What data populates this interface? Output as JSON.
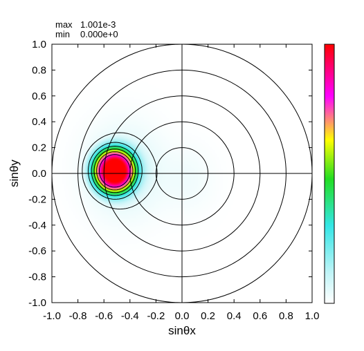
{
  "stats": {
    "max_label": "max",
    "max_value": "1.001e-3",
    "min_label": "min",
    "min_value": "0.000e+0"
  },
  "chart_data": {
    "type": "heatmap",
    "title": "",
    "xlabel": "sinθx",
    "ylabel": "sinθy",
    "xlim": [
      -1.0,
      1.0
    ],
    "ylim": [
      -1.0,
      1.0
    ],
    "x_ticks": [
      "-1.0",
      "-0.8",
      "-0.6",
      "-0.4",
      "-0.2",
      "0.0",
      "0.2",
      "0.4",
      "0.6",
      "0.8",
      "1.0"
    ],
    "y_ticks": [
      "1.0",
      "0.8",
      "0.6",
      "0.4",
      "0.2",
      "0.0",
      "-0.2",
      "-0.4",
      "-0.6",
      "-0.8",
      "-1.0"
    ],
    "grid": "polar",
    "polar_circle_radii": [
      0.2,
      0.4,
      0.6,
      0.8,
      1.0
    ],
    "value_range": [
      0.0,
      0.001001
    ],
    "peak": {
      "x": -0.52,
      "y": 0.02,
      "value": 0.001001
    },
    "contour_levels_fraction": [
      0.06,
      0.2,
      0.35,
      0.5,
      0.65,
      0.8
    ],
    "colorbar": {
      "position": "right",
      "stops": [
        "#ffffff",
        "#33e6e6",
        "#22dd22",
        "#ffff00",
        "#ff00ff",
        "#ff0000"
      ]
    }
  }
}
